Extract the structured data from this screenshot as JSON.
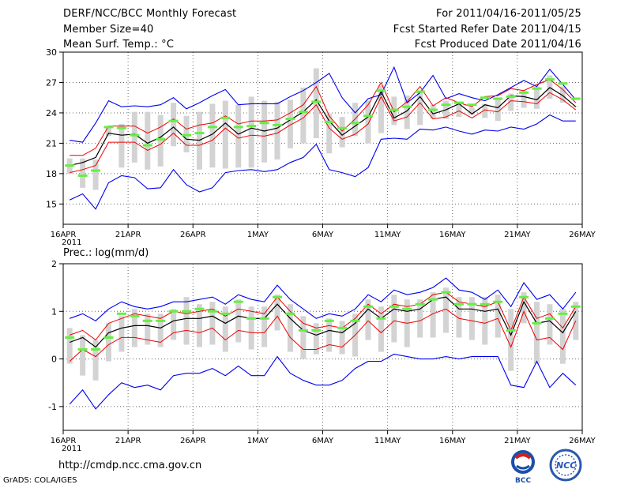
{
  "header": {
    "title": "DERF/NCC/BCC Monthly Forecast",
    "member_size": "Member Size=40",
    "variable": "Mean Surf. Temp.: °C",
    "forecast_period": "For 2011/04/16-2011/05/25",
    "started_date": "Fcst Started Refer Date 2011/04/15",
    "produced_date": "Fcst Produced Date 2011/04/16"
  },
  "footer": {
    "url": "http://cmdp.ncc.cma.gov.cn",
    "credit": "GrADS: COLA/IGES",
    "logo_bcc": "BCC",
    "logo_ncc": "NCC"
  },
  "colors": {
    "envelope": "#0000ee",
    "spread": "#ee0000",
    "mean": "#000000",
    "box": "#d3d3d3",
    "marker": "#66ee44"
  },
  "chart_data": [
    {
      "type": "line",
      "title": "Mean Surf. Temp.: °C",
      "x_tick_labels": [
        "16APR",
        "21APR",
        "26APR",
        "1MAY",
        "6MAY",
        "11MAY",
        "16MAY",
        "21MAY",
        "26MAY"
      ],
      "x_tick_days": [
        0,
        5,
        10,
        15,
        20,
        25,
        30,
        35,
        40
      ],
      "x_sublabel": "2011",
      "ylim": [
        13,
        30
      ],
      "y_ticks": [
        15,
        18,
        21,
        24,
        27,
        30
      ],
      "grid": true,
      "series": [
        {
          "name": "max",
          "values": [
            21.3,
            21.1,
            23.0,
            25.2,
            24.6,
            24.7,
            24.6,
            24.8,
            25.5,
            24.4,
            25.0,
            25.7,
            26.3,
            24.8,
            24.9,
            24.9,
            24.9,
            25.6,
            26.2,
            27.0,
            27.9,
            25.5,
            24.0,
            25.4,
            25.8,
            28.5,
            25.0,
            26.0,
            27.7,
            25.4,
            25.9,
            25.5,
            25.2,
            25.8,
            26.5,
            27.2,
            26.6,
            28.3,
            26.8,
            25.3
          ]
        },
        {
          "name": "upper",
          "values": [
            19.8,
            19.8,
            20.5,
            22.7,
            22.7,
            22.7,
            22.0,
            22.6,
            23.4,
            22.4,
            22.8,
            23.0,
            23.7,
            22.9,
            23.2,
            23.2,
            23.3,
            24.0,
            24.8,
            26.6,
            23.7,
            22.2,
            23.4,
            24.8,
            27.0,
            24.1,
            25.1,
            26.6,
            24.7,
            25.5,
            25.0,
            24.6,
            25.6,
            25.7,
            26.4,
            26.2,
            26.8,
            27.3,
            26.3,
            25.0
          ]
        },
        {
          "name": "mean",
          "values": [
            18.8,
            19.1,
            19.6,
            22.0,
            21.8,
            21.9,
            21.0,
            21.6,
            22.6,
            21.4,
            21.3,
            21.9,
            23.0,
            21.9,
            22.5,
            22.2,
            22.5,
            23.3,
            24.1,
            25.3,
            23.2,
            21.8,
            22.7,
            23.6,
            26.1,
            23.5,
            24.2,
            25.6,
            23.9,
            24.3,
            24.9,
            23.9,
            24.8,
            24.5,
            25.7,
            25.6,
            25.3,
            26.5,
            25.7,
            24.6
          ]
        },
        {
          "name": "lower",
          "values": [
            18.1,
            18.4,
            18.8,
            21.1,
            21.1,
            21.1,
            20.3,
            20.9,
            22.0,
            20.8,
            20.8,
            21.3,
            22.5,
            21.5,
            21.8,
            21.7,
            22.0,
            22.8,
            23.5,
            24.8,
            22.5,
            21.4,
            21.9,
            22.9,
            25.6,
            23.2,
            23.6,
            25.0,
            23.4,
            23.6,
            24.2,
            23.5,
            24.3,
            24.1,
            25.2,
            25.1,
            24.9,
            26.0,
            25.3,
            24.3
          ]
        },
        {
          "name": "min",
          "values": [
            15.4,
            16.0,
            14.5,
            17.1,
            17.8,
            17.6,
            16.5,
            16.6,
            18.4,
            16.9,
            16.2,
            16.6,
            18.1,
            18.3,
            18.4,
            18.2,
            18.4,
            19.1,
            19.6,
            20.9,
            18.4,
            18.1,
            17.7,
            18.6,
            21.4,
            21.5,
            21.4,
            22.4,
            22.3,
            22.6,
            22.2,
            21.9,
            22.3,
            22.2,
            22.6,
            22.4,
            22.9,
            23.8,
            23.2,
            23.2
          ]
        },
        {
          "name": "box_high",
          "values": [
            19.5,
            19.5,
            19.4,
            22.5,
            22.9,
            24.1,
            24.1,
            23.8,
            25.0,
            23.7,
            24.1,
            24.9,
            25.2,
            24.8,
            25.6,
            25.2,
            25.1,
            25.3,
            26.5,
            28.4,
            23.9,
            23.6,
            25.0,
            25.2,
            26.7,
            25.6,
            25.7,
            26.0,
            24.8,
            25.2,
            25.1,
            24.5,
            24.9,
            25.4,
            25.9,
            26.2,
            26.6,
            27.7,
            26.6,
            24.7
          ]
        },
        {
          "name": "box_low",
          "values": [
            18.0,
            16.6,
            16.4,
            21.7,
            18.6,
            19.1,
            18.4,
            18.7,
            20.7,
            20.1,
            18.4,
            18.6,
            18.5,
            18.6,
            18.6,
            19.1,
            19.4,
            20.5,
            21.0,
            21.5,
            20.0,
            20.6,
            21.7,
            21.0,
            22.0,
            22.8,
            22.4,
            22.8,
            23.4,
            23.4,
            23.6,
            23.8,
            23.5,
            23.2,
            24.2,
            24.5,
            24.4,
            25.4,
            25.0,
            25.3
          ]
        },
        {
          "name": "marker",
          "values": [
            18.8,
            17.8,
            18.3,
            22.6,
            22.5,
            21.8,
            20.8,
            21.4,
            23.2,
            21.8,
            22.0,
            22.6,
            23.5,
            22.6,
            22.7,
            23.0,
            22.8,
            23.4,
            24.1,
            25.1,
            23.1,
            22.5,
            23.0,
            23.7,
            26.2,
            24.3,
            24.6,
            26.1,
            24.3,
            24.8,
            25.0,
            24.8,
            25.5,
            25.4,
            25.6,
            26.0,
            26.4,
            27.3,
            26.9,
            25.4
          ]
        }
      ]
    },
    {
      "type": "line",
      "title": "Prec.: log(mm/d)",
      "x_tick_labels": [
        "16APR",
        "21APR",
        "26APR",
        "1MAY",
        "6MAY",
        "11MAY",
        "16MAY",
        "21MAY",
        "26MAY"
      ],
      "x_tick_days": [
        0,
        5,
        10,
        15,
        20,
        25,
        30,
        35,
        40
      ],
      "x_sublabel": "2011",
      "ylim": [
        -1.5,
        2
      ],
      "y_ticks": [
        -1,
        0,
        1,
        2
      ],
      "grid": true,
      "series": [
        {
          "name": "max",
          "values": [
            0.85,
            0.95,
            0.8,
            1.05,
            1.2,
            1.1,
            1.05,
            1.1,
            1.2,
            1.2,
            1.25,
            1.3,
            1.15,
            1.35,
            1.25,
            1.2,
            1.55,
            1.25,
            1.05,
            0.85,
            0.95,
            0.9,
            1.05,
            1.35,
            1.2,
            1.45,
            1.35,
            1.4,
            1.5,
            1.7,
            1.45,
            1.4,
            1.25,
            1.45,
            1.1,
            1.6,
            1.25,
            1.35,
            1.05,
            1.4
          ]
        },
        {
          "name": "upper",
          "values": [
            0.5,
            0.6,
            0.4,
            0.75,
            0.85,
            0.95,
            0.9,
            0.85,
            1.0,
            0.95,
            1.0,
            1.05,
            0.9,
            1.05,
            1.0,
            0.95,
            1.3,
            1.0,
            0.75,
            0.65,
            0.7,
            0.65,
            0.85,
            1.15,
            0.95,
            1.15,
            1.1,
            1.15,
            1.35,
            1.4,
            1.2,
            1.15,
            1.1,
            1.2,
            0.6,
            1.3,
            0.85,
            0.95,
            0.65,
            1.1
          ]
        },
        {
          "name": "mean",
          "values": [
            0.35,
            0.45,
            0.25,
            0.55,
            0.65,
            0.7,
            0.7,
            0.65,
            0.8,
            0.85,
            0.85,
            0.9,
            0.75,
            0.9,
            0.85,
            0.85,
            1.15,
            0.85,
            0.6,
            0.5,
            0.6,
            0.55,
            0.75,
            1.05,
            0.85,
            1.05,
            1.0,
            1.05,
            1.25,
            1.3,
            1.05,
            1.05,
            1.0,
            1.05,
            0.5,
            1.2,
            0.75,
            0.8,
            0.55,
            1.0
          ]
        },
        {
          "name": "lower",
          "values": [
            -0.05,
            0.2,
            0.05,
            0.3,
            0.45,
            0.45,
            0.4,
            0.35,
            0.55,
            0.6,
            0.55,
            0.65,
            0.4,
            0.6,
            0.55,
            0.55,
            0.9,
            0.45,
            0.2,
            0.2,
            0.3,
            0.25,
            0.5,
            0.8,
            0.55,
            0.8,
            0.75,
            0.8,
            0.95,
            1.05,
            0.85,
            0.8,
            0.75,
            0.85,
            0.25,
            1.0,
            0.4,
            0.45,
            0.2,
            0.8
          ]
        },
        {
          "name": "min",
          "values": [
            -0.95,
            -0.65,
            -1.05,
            -0.75,
            -0.5,
            -0.6,
            -0.55,
            -0.65,
            -0.35,
            -0.3,
            -0.3,
            -0.2,
            -0.35,
            -0.15,
            -0.35,
            -0.35,
            0.05,
            -0.3,
            -0.45,
            -0.55,
            -0.55,
            -0.45,
            -0.2,
            -0.05,
            -0.05,
            0.1,
            0.05,
            0.0,
            0.0,
            0.05,
            0.0,
            0.05,
            0.05,
            0.05,
            -0.55,
            -0.6,
            -0.05,
            -0.6,
            -0.3,
            -0.55
          ]
        },
        {
          "name": "box_high",
          "values": [
            0.65,
            0.5,
            0.4,
            0.75,
            0.9,
            1.05,
            0.95,
            0.95,
            1.05,
            1.3,
            1.15,
            1.2,
            1.1,
            1.25,
            1.1,
            1.1,
            1.35,
            1.15,
            0.9,
            0.75,
            0.85,
            0.8,
            0.95,
            1.25,
            1.1,
            1.35,
            1.25,
            1.25,
            1.4,
            1.5,
            1.3,
            1.3,
            1.3,
            1.35,
            1.05,
            1.4,
            1.2,
            1.15,
            1.05,
            1.2
          ]
        },
        {
          "name": "box_low",
          "values": [
            -0.1,
            -0.35,
            -0.45,
            -0.05,
            0.15,
            0.25,
            0.3,
            0.25,
            0.4,
            0.3,
            0.25,
            0.3,
            0.15,
            0.35,
            0.2,
            0.25,
            0.6,
            0.15,
            0.0,
            0.1,
            0.15,
            0.1,
            0.05,
            0.4,
            0.15,
            0.35,
            0.25,
            0.45,
            0.45,
            0.55,
            0.45,
            0.4,
            0.3,
            0.45,
            -0.25,
            0.75,
            -0.1,
            0.3,
            -0.1,
            0.4
          ]
        },
        {
          "name": "marker",
          "values": [
            0.45,
            0.2,
            0.2,
            0.45,
            0.95,
            0.9,
            0.8,
            0.8,
            1.0,
            1.0,
            1.05,
            1.0,
            0.95,
            1.2,
            0.85,
            0.85,
            1.3,
            0.95,
            0.6,
            0.6,
            0.8,
            0.65,
            0.8,
            1.1,
            0.85,
            1.1,
            1.05,
            1.15,
            1.25,
            1.4,
            1.15,
            1.15,
            1.15,
            1.2,
            0.6,
            1.3,
            0.75,
            0.85,
            0.95,
            1.1
          ]
        }
      ]
    }
  ]
}
